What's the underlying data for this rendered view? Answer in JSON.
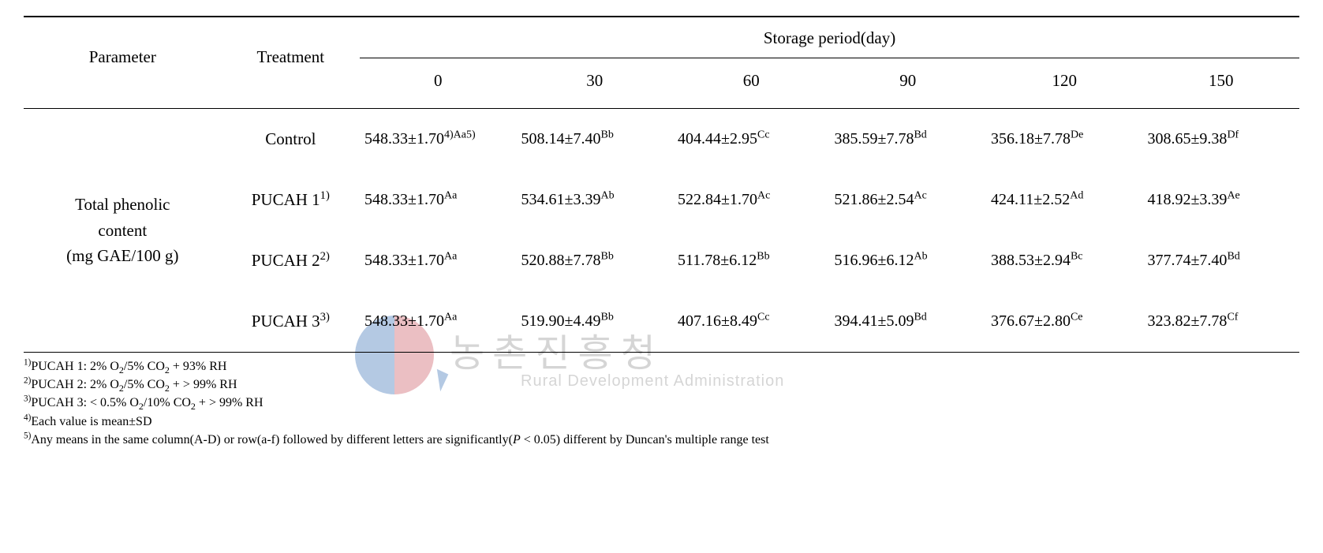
{
  "colors": {
    "text": "#000000",
    "background": "#ffffff",
    "rule": "#000000",
    "watermark_red": "#c74a57",
    "watermark_blue": "#2a66b2",
    "watermark_gray": "#8a8a8a"
  },
  "typography": {
    "base_family": "Times New Roman",
    "header_size_pt": 16,
    "body_size_pt": 15,
    "footnote_size_pt": 12
  },
  "headers": {
    "parameter": "Parameter",
    "treatment": "Treatment",
    "storage_period": "Storage period(day)",
    "days": [
      "0",
      "30",
      "60",
      "90",
      "120",
      "150"
    ]
  },
  "parameter": {
    "line1": "Total phenolic",
    "line2": "content",
    "line3": "(mg GAE/100 g)"
  },
  "treatments": [
    "Control",
    "PUCAH 1",
    "PUCAH 2",
    "PUCAH 3"
  ],
  "treatment_sup": [
    "",
    "1)",
    "2)",
    "3)"
  ],
  "cells": {
    "r0": {
      "v": [
        "548.33±1.70",
        "508.14±7.40",
        "404.44±2.95",
        "385.59±7.78",
        "356.18±7.78",
        "308.65±9.38"
      ],
      "s": [
        "4)Aa5)",
        "Bb",
        "Cc",
        "Bd",
        "De",
        "Df"
      ]
    },
    "r1": {
      "v": [
        "548.33±1.70",
        "534.61±3.39",
        "522.84±1.70",
        "521.86±2.54",
        "424.11±2.52",
        "418.92±3.39"
      ],
      "s": [
        "Aa",
        "Ab",
        "Ac",
        "Ac",
        "Ad",
        "Ae"
      ]
    },
    "r2": {
      "v": [
        "548.33±1.70",
        "520.88±7.78",
        "511.78±6.12",
        "516.96±6.12",
        "388.53±2.94",
        "377.74±7.40"
      ],
      "s": [
        "Aa",
        "Bb",
        "Bb",
        "Ab",
        "Bc",
        "Bd"
      ]
    },
    "r3": {
      "v": [
        "548.33±1.70",
        "519.90±4.49",
        "407.16±8.49",
        "394.41±5.09",
        "376.67±2.80",
        "323.82±7.78"
      ],
      "s": [
        "Aa",
        "Bb",
        "Cc",
        "Bd",
        "Ce",
        "Cf"
      ]
    }
  },
  "footnotes": {
    "f1_pre": "PUCAH 1: 2% O",
    "f1_post": "/5% CO",
    "f1_tail": " + 93% RH",
    "f2_pre": "PUCAH 2: 2% O",
    "f2_post": "/5% CO",
    "f2_tail": " + > 99% RH",
    "f3_pre": "PUCAH 3: < 0.5% O",
    "f3_post": "/10% CO",
    "f3_tail": " + > 99% RH",
    "f4": "Each value is mean±SD",
    "f5_a": "Any means in the same column(A-D) or row(a-f) followed by different letters are significantly(",
    "f5_P": "P",
    "f5_b": " < 0.05) different by Duncan's multiple range test"
  },
  "watermark": {
    "korean": "농촌진흥청",
    "english": "Rural Development Administration"
  }
}
